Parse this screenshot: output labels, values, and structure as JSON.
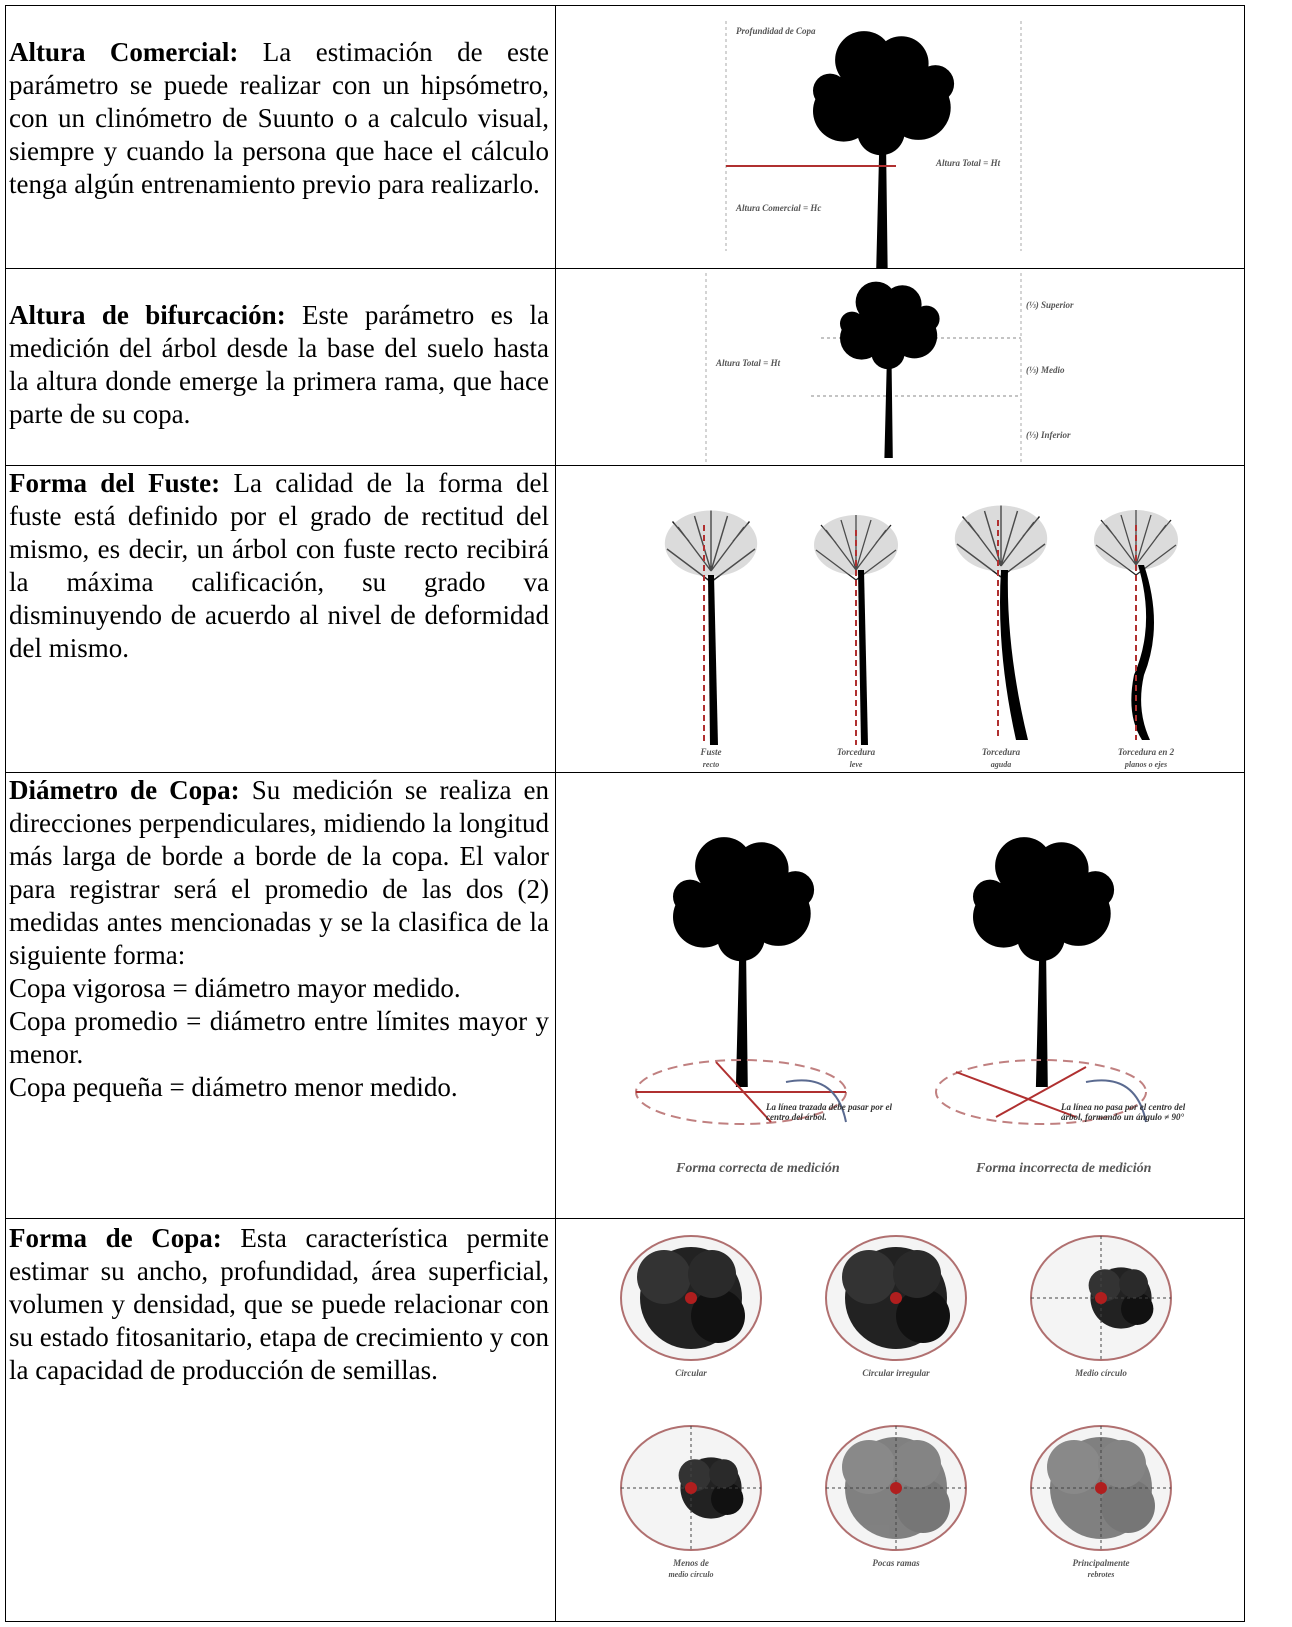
{
  "table": {
    "rows": [
      {
        "term": "Altura Comercial:",
        "text": " La estimación de este parámetro se puede realizar con un hipsómetro, con un clinómetro de Suunto o a calculo visual, siempre y cuando la persona que hace el cálculo tenga algún entrenamiento previo para realizarlo.",
        "image": {
          "labels": [
            "Profundidad de Copa",
            "Altura Total = Ht",
            "Altura Comercial = Hc"
          ]
        }
      },
      {
        "term": "Altura de bifurcación:",
        "text": " Este parámetro es la medición del árbol desde la base del suelo hasta la altura donde emerge la primera rama, que hace parte de su copa.",
        "image": {
          "labels": [
            "(⅓) Superior",
            "Altura Total = Ht",
            "(⅓) Medio",
            "(⅓) Inferior"
          ]
        }
      },
      {
        "term": "Forma del Fuste:",
        "text": " La calidad de la forma del fuste está definido por el grado de rectitud del mismo, es decir, un árbol con fuste recto recibirá la máxima calificación, su grado va disminuyendo de acuerdo al nivel de deformidad del mismo.",
        "image": {
          "labels": [
            [
              "Fuste",
              "recto"
            ],
            [
              "Torcedura",
              "leve"
            ],
            [
              "Torcedura",
              "aguda"
            ],
            [
              "Torcedura en 2",
              "planos o ejes"
            ]
          ]
        }
      },
      {
        "term": "Diámetro de Copa:",
        "text": " Su medición se realiza en direcciones perpendiculares, midiendo la longitud más larga de borde a borde de la copa. El valor para registrar será el promedio de las dos (2) medidas antes mencionadas y se la clasifica de la siguiente forma:",
        "items": [
          "Copa vigorosa = diámetro mayor medido.",
          "Copa promedio = diámetro entre límites mayor y menor.",
          "Copa pequeña = diámetro menor medido."
        ],
        "image": {
          "notes": [
            "La línea trazada debe pasar por el centro del árbol.",
            "La línea no pasa por el centro del árbol, formando un ángulo ≠ 90°"
          ],
          "captions": [
            "Forma correcta de medición",
            "Forma incorrecta de medición"
          ]
        }
      },
      {
        "term": "Forma de Copa:",
        "text": " Esta característica permite estimar su ancho, profundidad, área superficial, volumen y densidad, que se puede relacionar con su estado fitosanitario, etapa de crecimiento y con la capacidad de producción de semillas.",
        "image": {
          "labels": [
            [
              "Circular"
            ],
            [
              "Circular irregular"
            ],
            [
              "Medio círculo"
            ],
            [
              "Menos de",
              "medio círculo"
            ],
            [
              "Pocas ramas"
            ],
            [
              "Principalmente",
              "rebrotes"
            ]
          ]
        }
      }
    ]
  }
}
